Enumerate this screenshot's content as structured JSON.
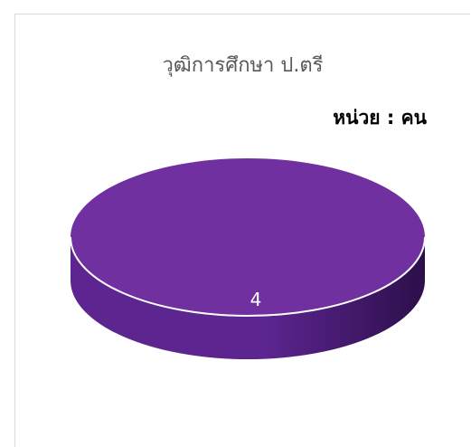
{
  "chart_data": {
    "type": "pie",
    "title": "วุฒิการศึกษา ป.ตรี",
    "unit_label": "หน่วย : คน",
    "categories": [
      "ป.ตรี"
    ],
    "values": [
      4
    ],
    "data_labels": [
      "4"
    ],
    "style": "3d",
    "colors": {
      "slice_top": "#7030a0",
      "slice_side_light": "#5c2590",
      "slice_side_dark": "#2c0f4a",
      "outline": "#ffffff",
      "label_text": "#ffffff",
      "title_text": "#595959"
    }
  }
}
